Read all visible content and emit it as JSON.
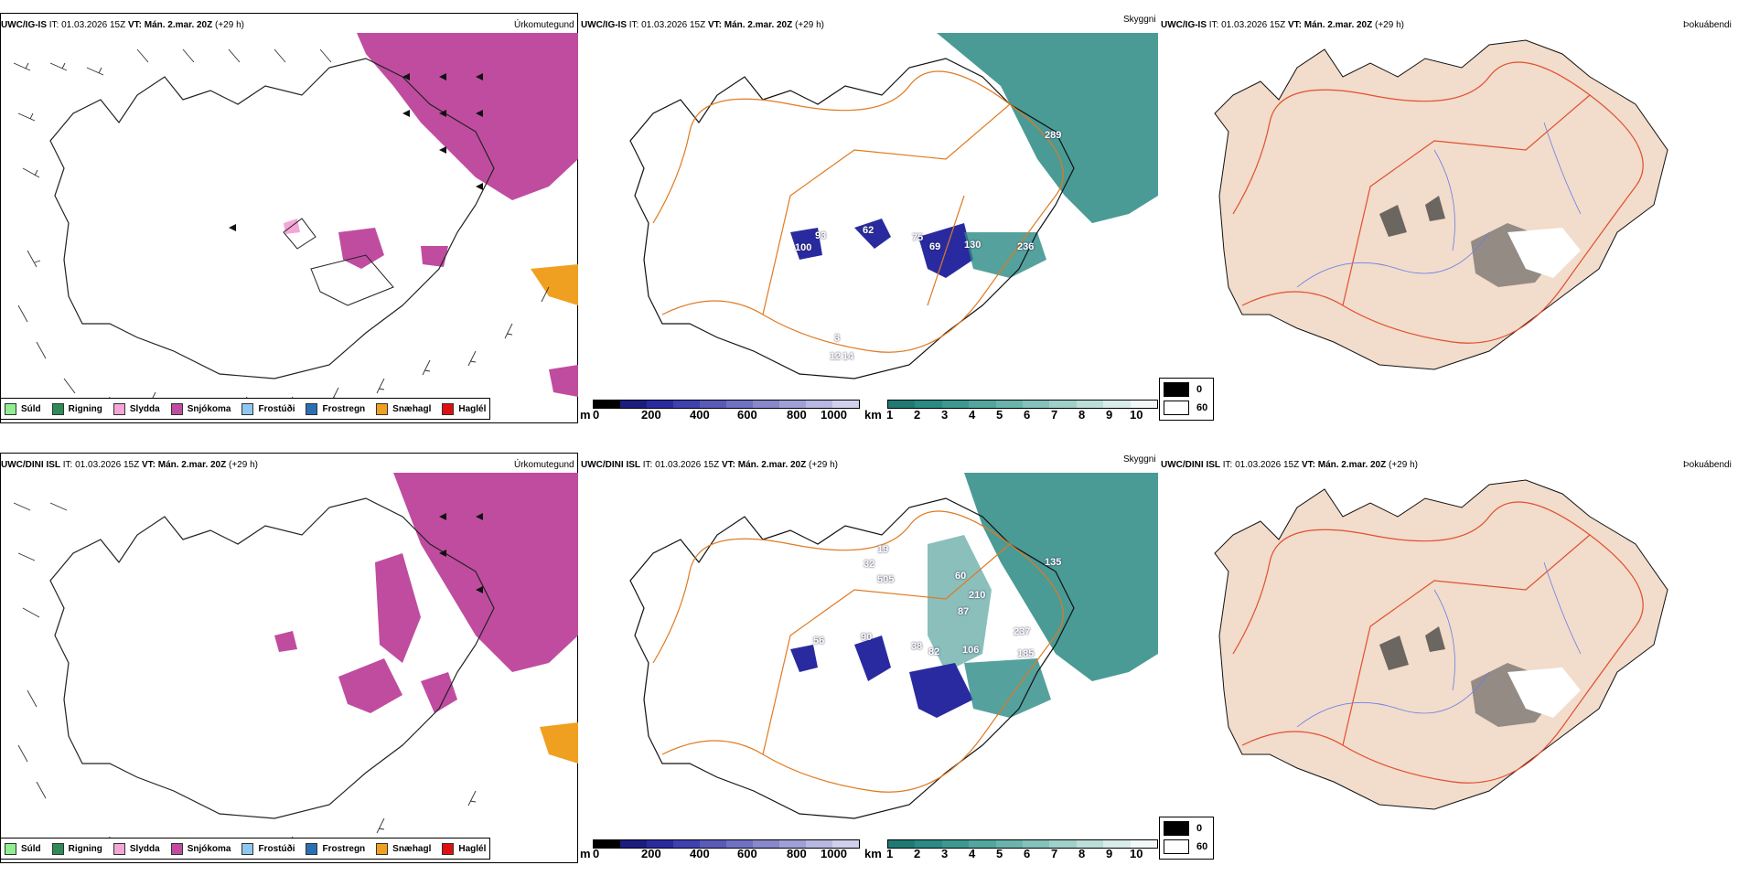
{
  "rows": [
    {
      "model": "UWC/IG-IS",
      "it_label": "IT:",
      "it_value": "01.03.2026 15Z",
      "vt_label": "VT:",
      "vt_value": "Mán. 2.mar. 20Z",
      "lead": "(+29 h)"
    },
    {
      "model": "UWC/DINI ISL",
      "it_label": "IT:",
      "it_value": "01.03.2026 15Z",
      "vt_label": "VT:",
      "vt_value": "Mán. 2.mar. 20Z",
      "lead": "(+29 h)"
    }
  ],
  "panel_titles": {
    "precip": "Úrkomutegund",
    "cloud": "Skyggni",
    "fog": "Þokuábendi"
  },
  "precip_legend": [
    {
      "label": "Súld",
      "color": "#90ee90"
    },
    {
      "label": "Rigning",
      "color": "#2e8b57"
    },
    {
      "label": "Slydda",
      "color": "#f4a6d7"
    },
    {
      "label": "Snjókoma",
      "color": "#c04ca0"
    },
    {
      "label": "Frostúði",
      "color": "#8ec8f0"
    },
    {
      "label": "Frostregn",
      "color": "#2a6fb5"
    },
    {
      "label": "Snæhagl",
      "color": "#f0a020"
    },
    {
      "label": "Haglél",
      "color": "#e01010"
    }
  ],
  "height_scale": {
    "unit": "m",
    "ticks": [
      "0",
      "200",
      "400",
      "600",
      "800",
      "1000"
    ]
  },
  "vis_scale": {
    "unit": "km",
    "ticks": [
      "1",
      "2",
      "3",
      "4",
      "5",
      "6",
      "7",
      "8",
      "9",
      "10"
    ]
  },
  "fog_legend": [
    {
      "label": "0",
      "color": "#000000"
    },
    {
      "label": "60",
      "color": "#ffffff"
    }
  ],
  "ceiling_values": {
    "top": [
      "289",
      "62",
      "93",
      "100",
      "69",
      "130",
      "75",
      "236",
      "3",
      "12",
      "14"
    ],
    "bottom": [
      "135",
      "32",
      "19",
      "505",
      "60",
      "210",
      "87",
      "237",
      "90",
      "38",
      "82",
      "106",
      "185",
      "56"
    ]
  },
  "colors": {
    "snow": "#c04ca0",
    "teal": "#2a8a84",
    "purple": "#2a2aa0",
    "roads": "#e07a20",
    "land": "#f2dccb",
    "rivers": "#6a7ee8"
  }
}
